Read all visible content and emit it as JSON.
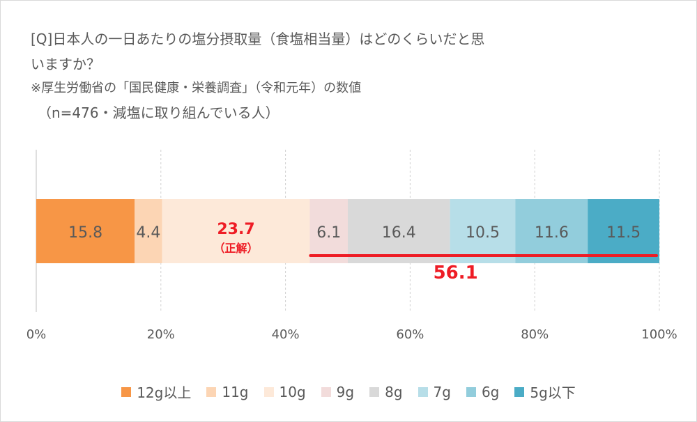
{
  "title": {
    "line1": "[Q]日本人の一日あたりの塩分摂取量（食塩相当量）はどのくらいだと思",
    "line2": "いますか？",
    "note": "※厚生労働省の「国民健康・栄養調査」（令和元年）の数値",
    "sample": "（n=476・減塩に取り組んでいる人）"
  },
  "chart_data": {
    "type": "bar",
    "orientation": "horizontal",
    "stacked": true,
    "xlim": [
      0,
      100
    ],
    "x_ticks": [
      "0%",
      "20%",
      "40%",
      "60%",
      "80%",
      "100%"
    ],
    "grid": true,
    "legend_position": "bottom",
    "series": [
      {
        "name": "12g以上",
        "value": 15.8,
        "color": "#f79646",
        "label": "15.8"
      },
      {
        "name": "11g",
        "value": 4.4,
        "color": "#fcd5b4",
        "label": "4.4"
      },
      {
        "name": "10g",
        "value": 23.7,
        "color": "#fde9d9",
        "label": "23.7",
        "highlight": true,
        "sublabel": "（正解）"
      },
      {
        "name": "9g",
        "value": 6.1,
        "color": "#f2dcdb",
        "label": "6.1"
      },
      {
        "name": "8g",
        "value": 16.4,
        "color": "#d9d9d9",
        "label": "16.4"
      },
      {
        "name": "7g",
        "value": 10.5,
        "color": "#b7dee8",
        "label": "10.5"
      },
      {
        "name": "6g",
        "value": 11.6,
        "color": "#92cddc",
        "label": "11.6"
      },
      {
        "name": "5g以下",
        "value": 11.5,
        "color": "#4bacc6",
        "label": "11.5"
      }
    ],
    "annotation": {
      "text": "56.1",
      "from": 44.0,
      "to": 100.0,
      "color": "#ee1c25"
    },
    "label_color": "#595959",
    "highlight_color": "#ee1c25"
  }
}
